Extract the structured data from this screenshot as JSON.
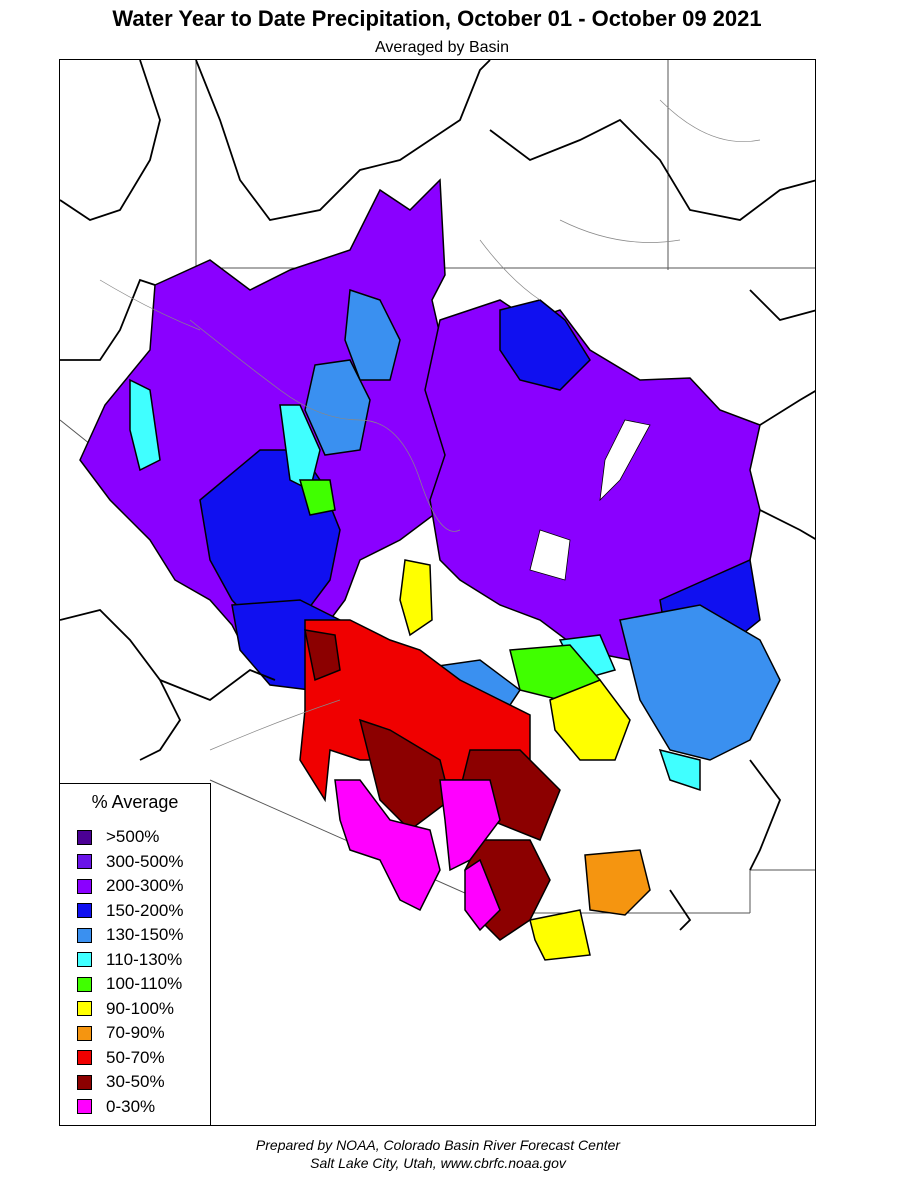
{
  "header": {
    "title": "Water Year to Date Precipitation, October 01  - October 09 2021",
    "subtitle": "Averaged by Basin"
  },
  "legend": {
    "title": "% Average",
    "items": [
      {
        "label": ">500%",
        "color": "#4b0094"
      },
      {
        "label": "300-500%",
        "color": "#6a14e8"
      },
      {
        "label": "200-300%",
        "color": "#8a00ff"
      },
      {
        "label": "150-200%",
        "color": "#1010f0"
      },
      {
        "label": "130-150%",
        "color": "#3a90f0"
      },
      {
        "label": "110-130%",
        "color": "#40ffff"
      },
      {
        "label": "100-110%",
        "color": "#40ff00"
      },
      {
        "label": "90-100%",
        "color": "#ffff00"
      },
      {
        "label": "70-90%",
        "color": "#f59510"
      },
      {
        "label": "50-70%",
        "color": "#f00000"
      },
      {
        "label": "30-50%",
        "color": "#8c0000"
      },
      {
        "label": "0-30%",
        "color": "#ff00ff"
      }
    ]
  },
  "footer": {
    "line1": "Prepared by NOAA, Colorado Basin River Forecast Center",
    "line2": "Salt Lake City, Utah, www.cbrfc.noaa.gov"
  }
}
